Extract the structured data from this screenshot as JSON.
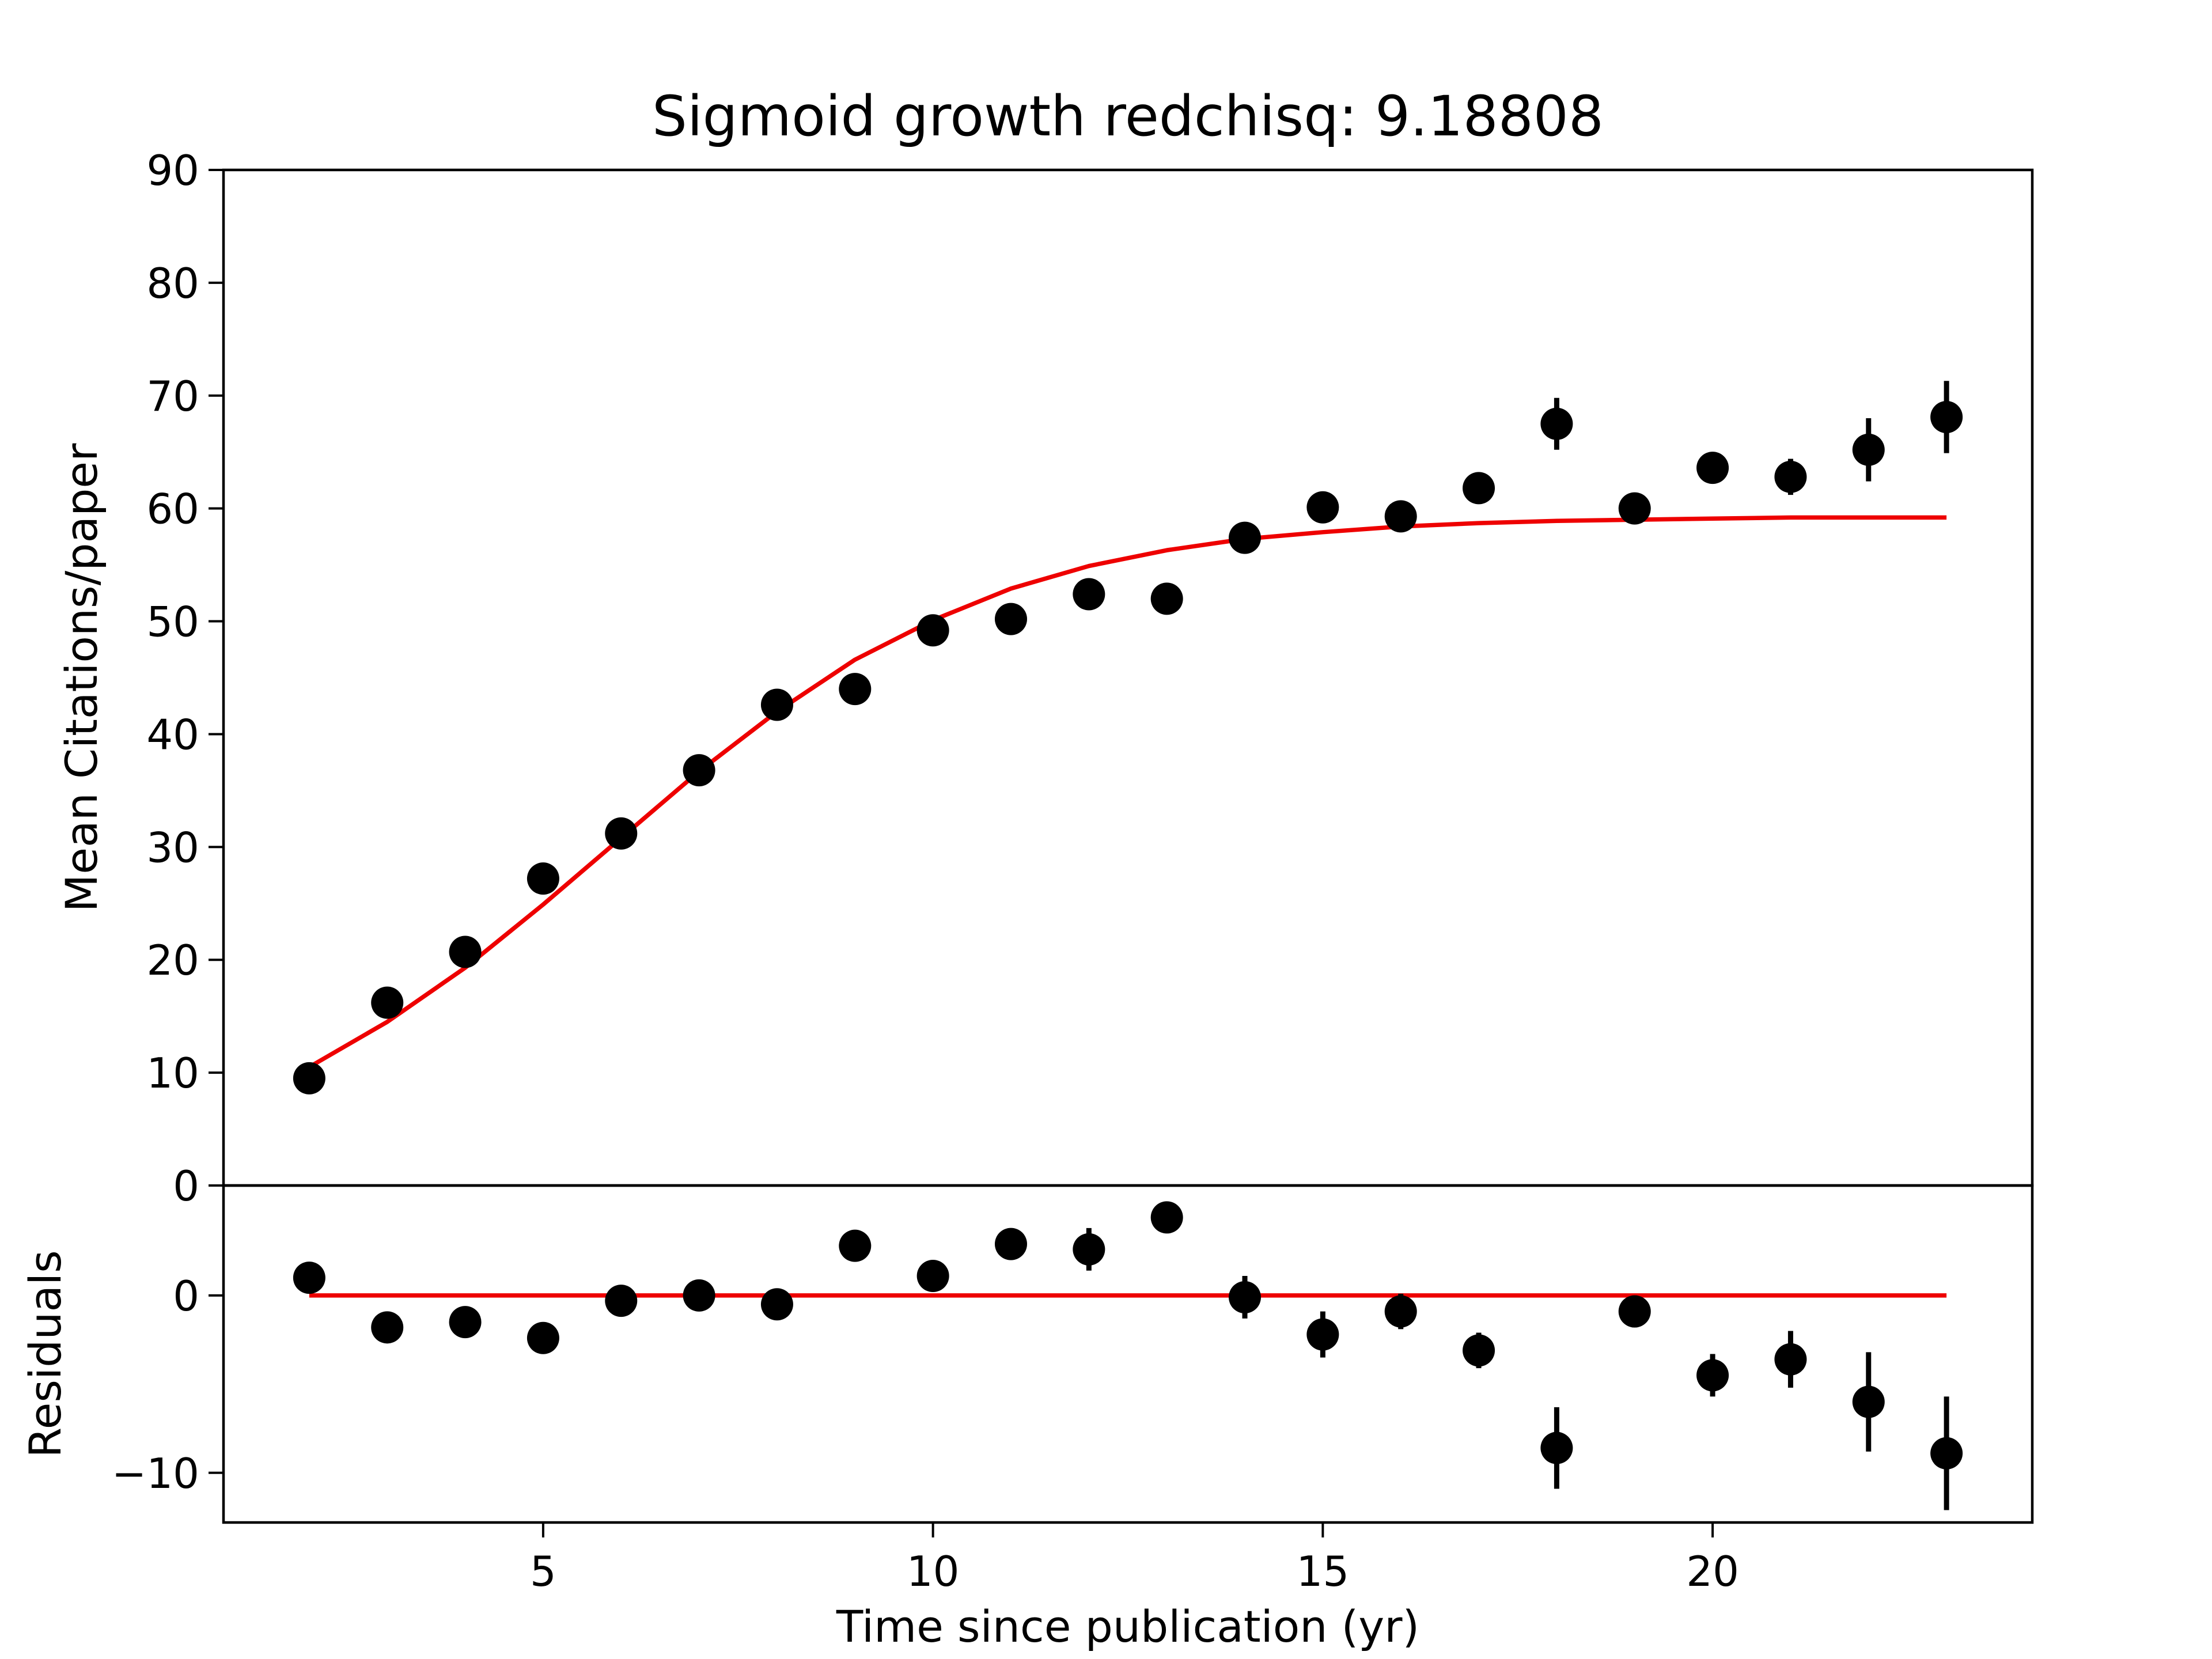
{
  "chart_data": [
    {
      "type": "scatter",
      "title": "Sigmoid growth redchisq: 9.18808",
      "xlabel": "",
      "ylabel": "Mean Citations/paper",
      "ylim": [
        0,
        90
      ],
      "xlim": [
        0.9,
        24.1
      ],
      "yticks": [
        0,
        10,
        20,
        30,
        40,
        50,
        60,
        70,
        80,
        90
      ],
      "grid": false,
      "colors": {
        "data": "#000000",
        "fit": "#ee0000"
      },
      "series": [
        {
          "kind": "errorbar-points",
          "x": [
            2,
            3,
            4,
            5,
            6,
            7,
            8,
            9,
            10,
            11,
            12,
            13,
            14,
            15,
            16,
            17,
            18,
            19,
            20,
            21,
            22,
            23
          ],
          "y": [
            9.5,
            16.2,
            20.7,
            27.2,
            31.2,
            36.8,
            42.6,
            44.0,
            49.2,
            50.2,
            52.4,
            52.0,
            57.4,
            60.1,
            59.3,
            61.8,
            67.5,
            60.0,
            63.6,
            62.8,
            65.2,
            68.1
          ],
          "yerr": [
            0.4,
            0.4,
            0.4,
            0.4,
            0.4,
            0.5,
            0.5,
            0.5,
            0.8,
            0.6,
            1.2,
            0.6,
            1.2,
            1.3,
            1.0,
            1.0,
            2.3,
            0.9,
            1.2,
            1.6,
            2.8,
            3.2
          ]
        },
        {
          "kind": "fit-line",
          "x": [
            2,
            3,
            4,
            5,
            6,
            7,
            8,
            9,
            10,
            11,
            12,
            13,
            14,
            15,
            16,
            17,
            18,
            19,
            20,
            21,
            22,
            23
          ],
          "y": [
            10.5,
            14.5,
            19.3,
            24.9,
            30.8,
            36.7,
            42.0,
            46.6,
            50.1,
            52.9,
            54.9,
            56.3,
            57.3,
            57.9,
            58.4,
            58.7,
            58.9,
            59.0,
            59.1,
            59.2,
            59.2,
            59.2
          ]
        }
      ]
    },
    {
      "type": "scatter",
      "title": "",
      "xlabel": "Time since publication (yr)",
      "ylabel": "Residuals",
      "ylim": [
        -12.8,
        6.2
      ],
      "xlim": [
        0.9,
        24.1
      ],
      "xticks": [
        5,
        10,
        15,
        20
      ],
      "yticks": [
        -10,
        0
      ],
      "ytick_labels": [
        "−10",
        "0"
      ],
      "grid": false,
      "colors": {
        "data": "#000000",
        "fit": "#ee0000"
      },
      "series": [
        {
          "kind": "errorbar-points",
          "x": [
            2,
            3,
            4,
            5,
            6,
            7,
            8,
            9,
            10,
            11,
            12,
            13,
            14,
            15,
            16,
            17,
            18,
            19,
            20,
            21,
            22,
            23
          ],
          "y": [
            1.0,
            -1.8,
            -1.5,
            -2.4,
            -0.3,
            0.0,
            -0.5,
            2.8,
            1.1,
            2.9,
            2.6,
            4.4,
            -0.1,
            -2.2,
            -0.9,
            -3.1,
            -8.6,
            -0.9,
            -4.5,
            -3.6,
            -6.0,
            -8.9
          ],
          "yerr": [
            0.4,
            0.4,
            0.4,
            0.4,
            0.4,
            0.5,
            0.5,
            0.5,
            0.8,
            0.6,
            1.2,
            0.6,
            1.2,
            1.3,
            1.0,
            1.0,
            2.3,
            0.9,
            1.2,
            1.6,
            2.8,
            3.2
          ]
        },
        {
          "kind": "fit-line",
          "x": [
            2,
            23
          ],
          "y": [
            0,
            0
          ]
        }
      ]
    }
  ]
}
